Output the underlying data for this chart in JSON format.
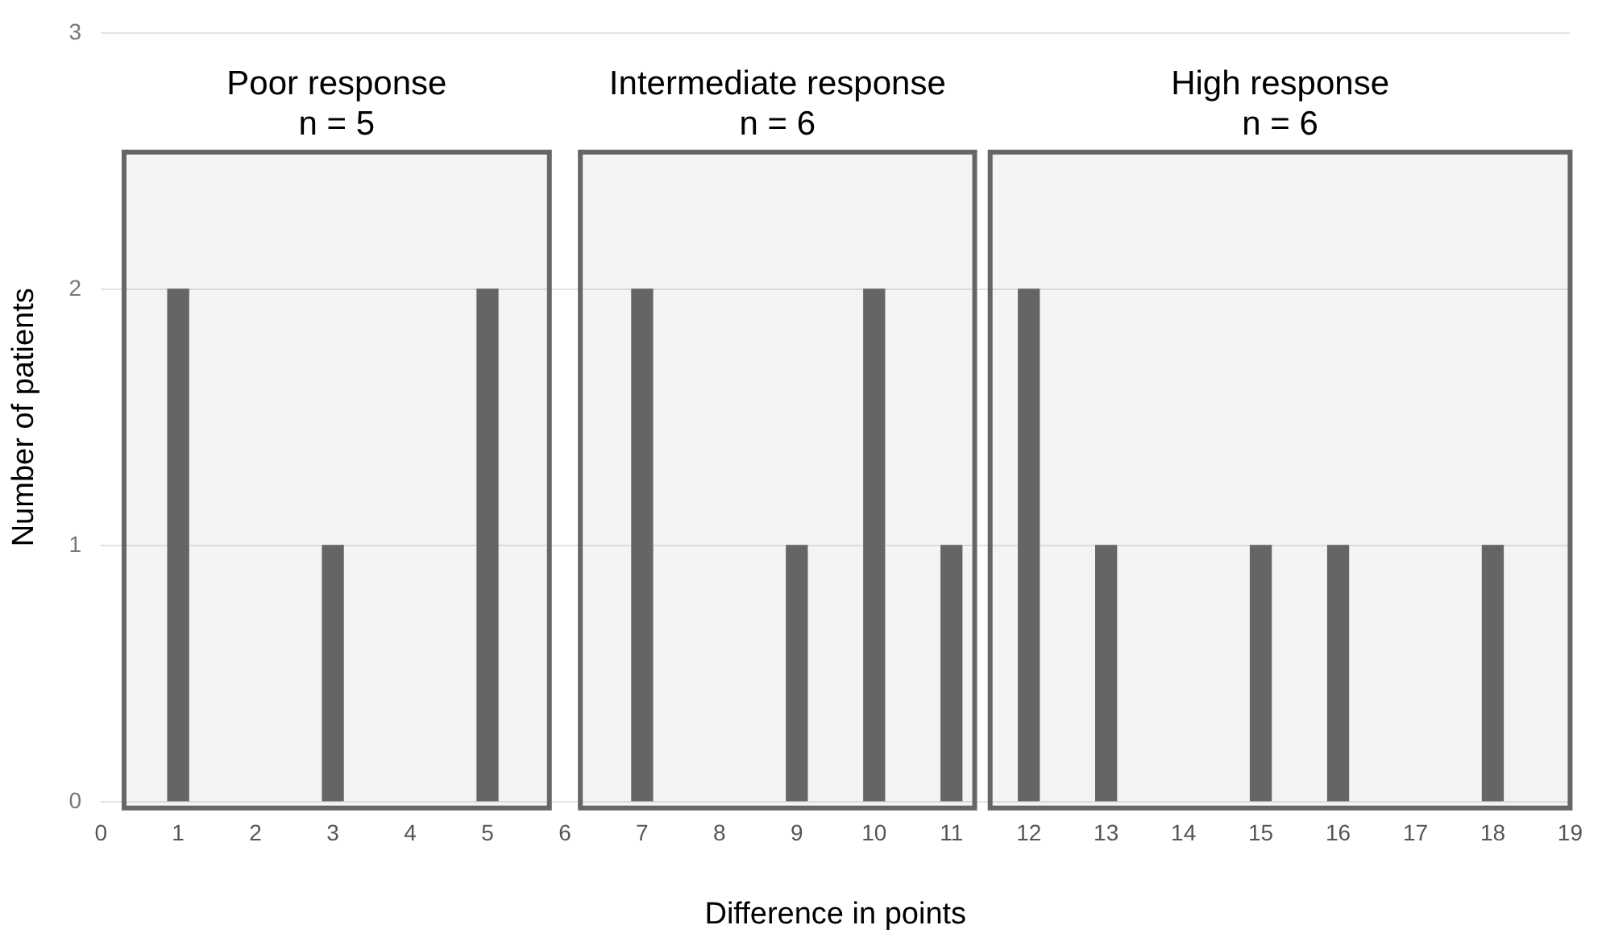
{
  "chart_data": {
    "type": "bar",
    "xlabel": "Difference in points",
    "ylabel": "Number of patients",
    "x": [
      1,
      3,
      5,
      7,
      9,
      10,
      11,
      12,
      13,
      15,
      16,
      18
    ],
    "values": [
      2,
      1,
      2,
      2,
      1,
      2,
      1,
      2,
      1,
      1,
      1,
      1
    ],
    "color": "#666666",
    "xlim": [
      0,
      19
    ],
    "xticks": [
      0,
      1,
      2,
      3,
      4,
      5,
      6,
      7,
      8,
      9,
      10,
      11,
      12,
      13,
      14,
      15,
      16,
      17,
      18,
      19
    ],
    "ylim": [
      0,
      3
    ],
    "yticks": [
      0,
      1,
      2,
      3
    ],
    "grid": "y",
    "bands": [
      {
        "axis": "x",
        "from": 0.3,
        "to": 5.8,
        "label": "Poor response\nn = 5",
        "color": "#666666"
      },
      {
        "axis": "x",
        "from": 6.2,
        "to": 11.3,
        "label": "Intermediate response\nn = 6",
        "color": "#666666"
      },
      {
        "axis": "x",
        "from": 11.5,
        "to": 19,
        "label": "High response\nn = 6",
        "color": "#666666"
      }
    ]
  }
}
